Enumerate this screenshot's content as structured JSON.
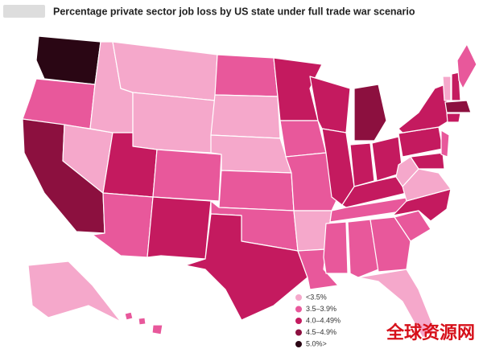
{
  "title": "Percentage private sector job loss by US state under full trade war scenario",
  "legend": [
    {
      "label": "<3.5%",
      "color": "#f5a8cb"
    },
    {
      "label": "3.5–3.9%",
      "color": "#e8589b"
    },
    {
      "label": "4.0–4.49%",
      "color": "#c41a5f"
    },
    {
      "label": "4.5–4.9%",
      "color": "#8c103f"
    },
    {
      "label": "5.0%>",
      "color": "#2a0614"
    }
  ],
  "regions": [
    4,
    1,
    3,
    0,
    0,
    0,
    0,
    2,
    1,
    1,
    2,
    1,
    0,
    0,
    1,
    1,
    2,
    2,
    1,
    1,
    0,
    1,
    2,
    2,
    3,
    2,
    2,
    2,
    1,
    1,
    1,
    1,
    0,
    1,
    2,
    0,
    0,
    2,
    2,
    2,
    1,
    0,
    2,
    1,
    3,
    2,
    0,
    1,
    1,
    1
  ],
  "watermark": "全球资源网"
}
